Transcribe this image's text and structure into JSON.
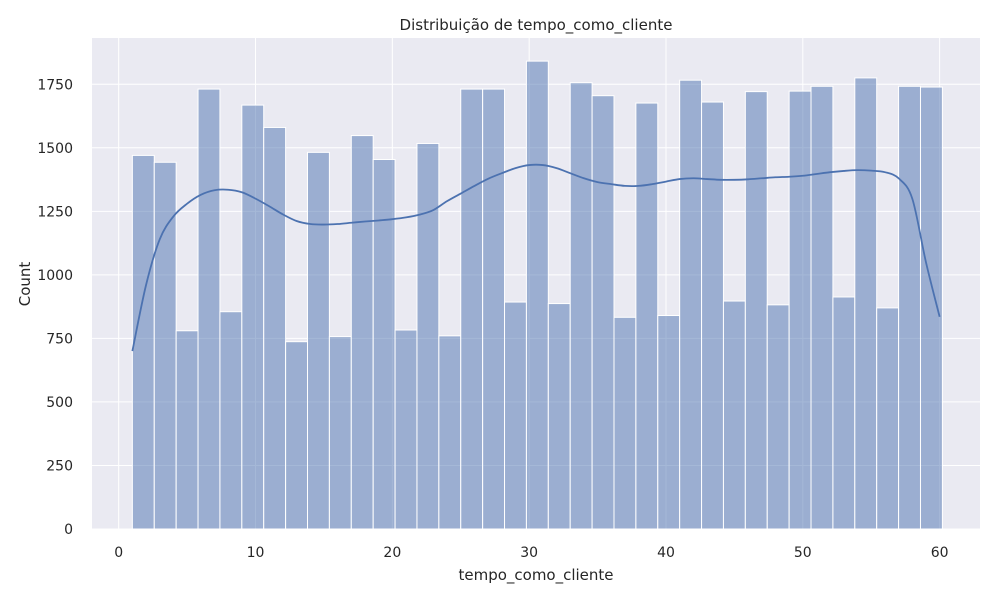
{
  "chart_data": {
    "type": "bar",
    "title": "Distribuição de tempo_como_cliente",
    "xlabel": "tempo_como_cliente",
    "ylabel": "Count",
    "xlim": [
      -1.95,
      62.95
    ],
    "ylim": [
      0,
      1932
    ],
    "xticks": [
      0,
      10,
      20,
      30,
      40,
      50,
      60
    ],
    "yticks": [
      0,
      250,
      500,
      750,
      1000,
      1250,
      1500,
      1750
    ],
    "grid": true,
    "bin_start": 1,
    "bin_width": 1.6,
    "values": [
      1470,
      1443,
      780,
      1731,
      855,
      1668,
      1580,
      737,
      1482,
      757,
      1548,
      1454,
      783,
      1517,
      760,
      1731,
      1731,
      893,
      1841,
      887,
      1756,
      1705,
      833,
      1676,
      840,
      1766,
      1680,
      897,
      1721,
      882,
      1723,
      1742,
      913,
      1775,
      870,
      1742,
      1739
    ],
    "kde": {
      "x": [
        1,
        2,
        3,
        4,
        5,
        6,
        7,
        8,
        9,
        10,
        11,
        12,
        13,
        14,
        15,
        16,
        17,
        18,
        19,
        20,
        21,
        22,
        23,
        24,
        25,
        26,
        27,
        28,
        29,
        30,
        31,
        32,
        33,
        34,
        35,
        36,
        37,
        38,
        39,
        40,
        41,
        42,
        43,
        44,
        45,
        46,
        47,
        48,
        49,
        50,
        51,
        52,
        53,
        54,
        55,
        56,
        57,
        58,
        59,
        60
      ],
      "y": [
        700,
        960,
        1140,
        1230,
        1280,
        1315,
        1333,
        1335,
        1325,
        1300,
        1270,
        1238,
        1212,
        1200,
        1198,
        1200,
        1205,
        1210,
        1214,
        1219,
        1226,
        1237,
        1255,
        1290,
        1320,
        1350,
        1378,
        1400,
        1420,
        1432,
        1432,
        1420,
        1400,
        1380,
        1365,
        1357,
        1350,
        1350,
        1357,
        1367,
        1377,
        1380,
        1377,
        1374,
        1374,
        1376,
        1380,
        1384,
        1386,
        1390,
        1397,
        1404,
        1409,
        1412,
        1410,
        1404,
        1380,
        1300,
        1050,
        835
      ]
    },
    "bar_color": "#4c72b0",
    "bar_alpha": 0.5,
    "line_color": "#4c72b0",
    "background": "#eaeaf2",
    "grid_color": "#ffffff"
  }
}
